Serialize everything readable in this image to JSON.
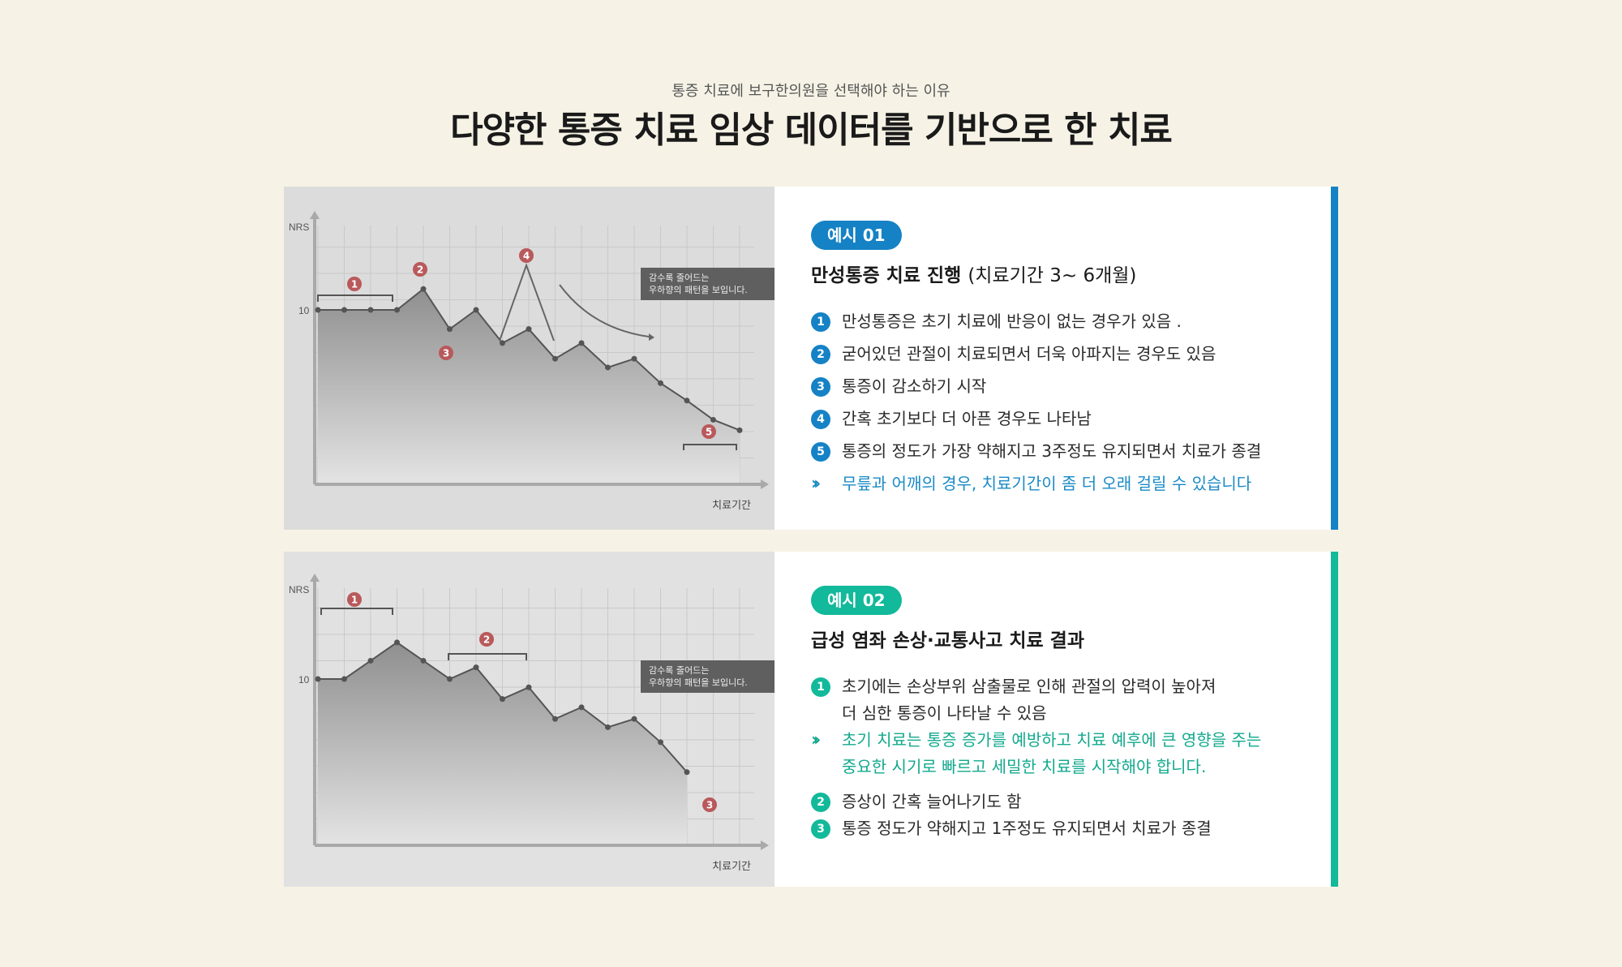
{
  "header": {
    "subtitle": "통증 치료에 보구한의원을 선택해야 하는 이유",
    "title": "다양한 통증 치료 임상 데이터를 기반으로 한 치료"
  },
  "colors": {
    "blue": "#1582c5",
    "green": "#12b99a",
    "marker": "#b9595b",
    "background": "#f6f3e6"
  },
  "case1": {
    "badge": "예시 01",
    "title": "만성통증 치료 진행",
    "period": "(치료기간 3~ 6개월)",
    "items": [
      "만성통증은 초기 치료에 반응이 없는 경우가 있음 .",
      "굳어있던 관절이 치료되면서 더욱 아파지는 경우도 있음",
      "통증이 감소하기 시작",
      "간혹 초기보다 더 아픈 경우도 나타남",
      "통증의 정도가 가장 약해지고 3주정도 유지되면서 치료가 종결"
    ],
    "note": "무릎과 어깨의 경우, 치료기간이 좀 더 오래 걸릴 수 있습니다"
  },
  "case2": {
    "badge": "예시 02",
    "title": "급성 염좌 손상·교통사고 치료 결과",
    "item1_line1": "초기에는 손상부위 삼출물로 인해 관절의 압력이 높아져",
    "item1_line2": "더 심한 통증이 나타날 수 있음",
    "note_line1": "초기 치료는 통증 증가를 예방하고 치료 예후에 큰 영향을 주는",
    "note_line2": "중요한 시기로 빠르고 세밀한 치료를 시작해야 합니다.",
    "item2": "증상이 간혹 늘어나기도 함",
    "item3": "통증 정도가 약해지고 1주정도 유지되면서 치료가 종결"
  },
  "chart_data": [
    {
      "type": "line",
      "ylabel": "NRS",
      "xlabel": "치료기간",
      "y_ticks": [
        10
      ],
      "ylim": [
        0,
        14
      ],
      "values": [
        10,
        10,
        10,
        10,
        11.2,
        8.9,
        10,
        8.1,
        8.9,
        7.2,
        8.1,
        6.7,
        7.2,
        5.8,
        4.8,
        3.7,
        3.1
      ],
      "grid": true,
      "annotation": [
        "감수록 줄어드는",
        "우하향의 패턴을 보입니다."
      ],
      "markers": [
        "1",
        "2",
        "3",
        "4",
        "5"
      ]
    },
    {
      "type": "line",
      "ylabel": "NRS",
      "xlabel": "치료기간",
      "y_ticks": [
        10
      ],
      "ylim": [
        0,
        14
      ],
      "values": [
        10,
        10,
        11.1,
        12.2,
        11.1,
        10,
        10.7,
        8.8,
        9.5,
        7.6,
        8.3,
        7.1,
        7.6,
        6.2,
        4.4
      ],
      "grid": true,
      "annotation": [
        "감수록 줄어드는",
        "우하향의 패턴을 보입니다."
      ],
      "markers": [
        "1",
        "2",
        "3"
      ]
    }
  ]
}
